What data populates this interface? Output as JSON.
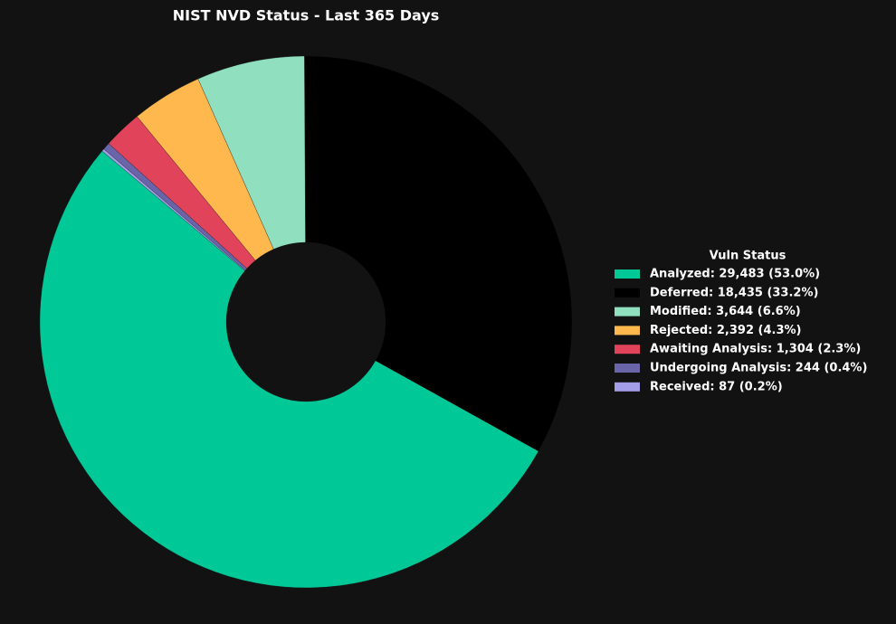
{
  "chart_data": {
    "type": "donut",
    "title": "NIST NVD Status - Last 365 Days",
    "legend_title": "Vuln Status",
    "categories": [
      "Analyzed: 29,483 (53.0%)",
      "Deferred: 18,435 (33.2%)",
      "Modified: 3,644 (6.6%)",
      "Rejected: 2,392 (4.3%)",
      "Awaiting Analysis: 1,304 (2.3%)",
      "Undergoing Analysis: 244 (0.4%)",
      "Received: 87 (0.2%)"
    ],
    "values": [
      29483,
      18435,
      3644,
      2392,
      1304,
      244,
      87
    ],
    "colors": [
      "#00c896",
      "#000000",
      "#90dfbf",
      "#ffb84d",
      "#e0435a",
      "#6a64a8",
      "#a49ee8"
    ],
    "legend": "right"
  }
}
